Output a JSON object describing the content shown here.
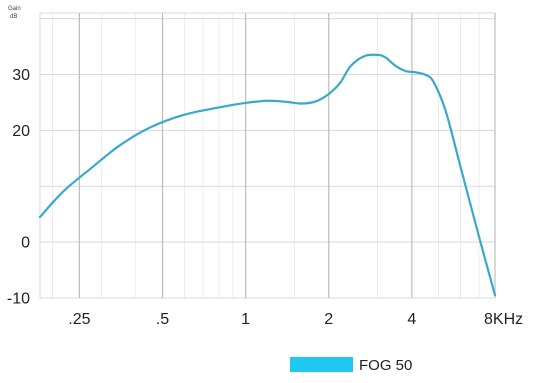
{
  "chart_data": {
    "type": "line",
    "title": "",
    "y_unit_label": [
      "Gain",
      "dB"
    ],
    "ylabel": "",
    "xlabel": "",
    "x_scale": "log",
    "y_ticks": [
      {
        "value": 30,
        "label": "30"
      },
      {
        "value": 20,
        "label": "20"
      },
      {
        "value": 0,
        "label": "0"
      },
      {
        "value": -10,
        "label": "-10"
      }
    ],
    "x_ticks": [
      {
        "value": 0.25,
        "label": ".25"
      },
      {
        "value": 0.5,
        "label": ".5"
      },
      {
        "value": 1,
        "label": "1"
      },
      {
        "value": 2,
        "label": "2"
      },
      {
        "value": 4,
        "label": "4"
      },
      {
        "value": 8,
        "label": "8KHz"
      }
    ],
    "xlim": [
      0.18,
      8
    ],
    "ylim": [
      -10,
      41
    ],
    "grid": true,
    "legend_position": "bottom-right",
    "colors": {
      "series": "#3aa9c9",
      "legend_swatch": "#1ec8f0",
      "grid": "#d9d9d9"
    },
    "series": [
      {
        "name": "FOG 50",
        "x": [
          0.18,
          0.22,
          0.28,
          0.35,
          0.45,
          0.6,
          0.8,
          1.0,
          1.2,
          1.4,
          1.6,
          1.8,
          2.0,
          2.2,
          2.4,
          2.7,
          3.0,
          3.2,
          3.5,
          3.8,
          4.1,
          4.5,
          4.8,
          5.3,
          6.0,
          7.0,
          8.0
        ],
        "values": [
          4.5,
          9.2,
          13.5,
          17.3,
          20.5,
          22.8,
          24.1,
          24.9,
          25.3,
          25.1,
          24.8,
          25.2,
          26.5,
          28.5,
          31.5,
          33.3,
          33.5,
          33.1,
          31.5,
          30.6,
          30.4,
          29.9,
          28.6,
          23.5,
          13.5,
          1.0,
          -9.5
        ]
      }
    ]
  }
}
